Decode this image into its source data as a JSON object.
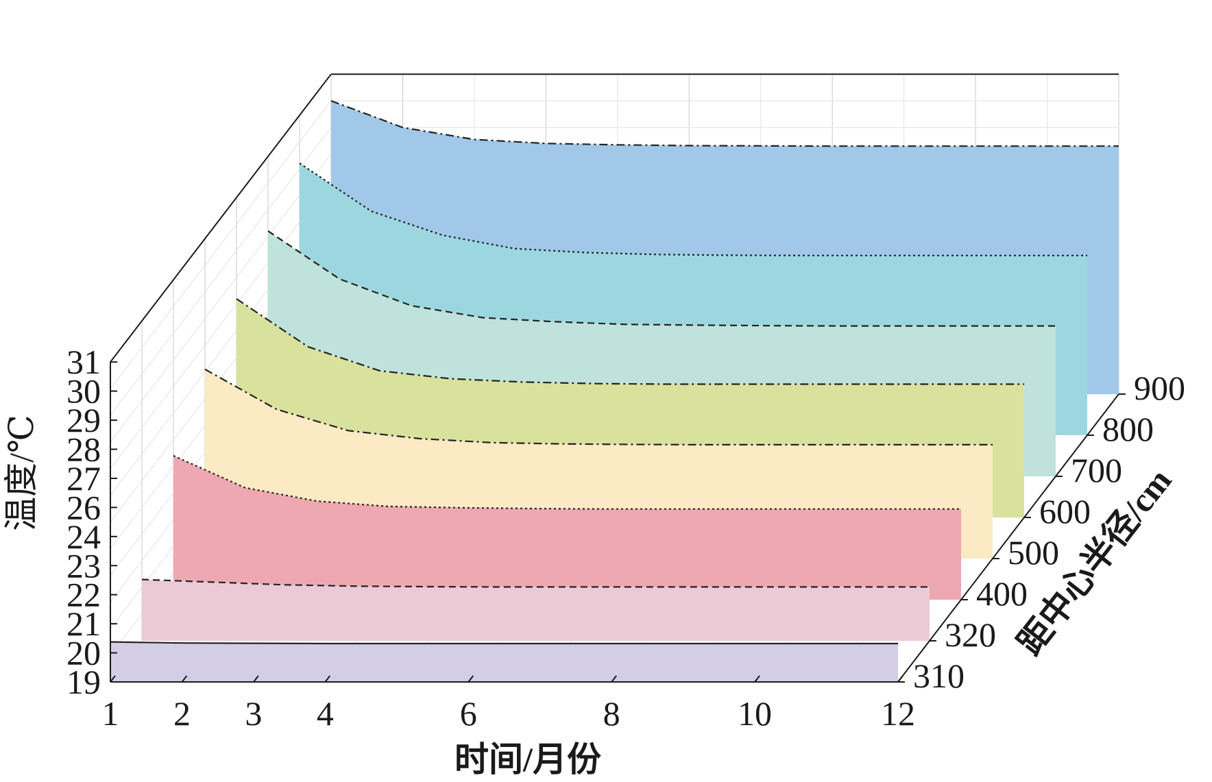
{
  "chart_data": {
    "type": "area",
    "view": "3d-waterfall",
    "xlabel": "时间/月份",
    "ylabel": "距中心半径/cm",
    "zlabel": "温度/℃",
    "x_ticks": [
      "1",
      "2",
      "3",
      "4",
      "6",
      "8",
      "10",
      "12"
    ],
    "y_ticks": [
      "310",
      "320",
      "400",
      "500",
      "600",
      "700",
      "800",
      "900"
    ],
    "z_ticks": [
      "19",
      "20",
      "21",
      "22",
      "23",
      "24",
      "26",
      "27",
      "28",
      "29",
      "30",
      "31"
    ],
    "x": [
      1,
      2,
      3,
      4,
      5,
      6,
      7,
      8,
      9,
      10,
      11,
      12
    ],
    "zlim": [
      19,
      31
    ],
    "grid": true,
    "series": [
      {
        "name": "310",
        "color": "#d3cde6",
        "line": "solid",
        "values": [
          20.5,
          20.46,
          20.45,
          20.44,
          20.44,
          20.44,
          20.44,
          20.44,
          20.44,
          20.44,
          20.44,
          20.44
        ]
      },
      {
        "name": "320",
        "color": "#eccad5",
        "line": "dashed",
        "values": [
          21.3,
          21.2,
          21.1,
          21.05,
          21.03,
          21.02,
          21.02,
          21.02,
          21.02,
          21.02,
          21.02,
          21.02
        ]
      },
      {
        "name": "400",
        "color": "#eea8b2",
        "line": "dotted",
        "values": [
          24.4,
          23.2,
          22.7,
          22.5,
          22.45,
          22.42,
          22.4,
          22.4,
          22.4,
          22.4,
          22.4,
          22.4
        ]
      },
      {
        "name": "500",
        "color": "#fbeac4",
        "line": "dash-dot",
        "values": [
          26.1,
          24.6,
          23.8,
          23.5,
          23.35,
          23.3,
          23.28,
          23.27,
          23.27,
          23.27,
          23.27,
          23.27
        ]
      },
      {
        "name": "600",
        "color": "#d9e29d",
        "line": "dash-dot",
        "values": [
          27.2,
          25.4,
          24.5,
          24.2,
          24.08,
          24.02,
          24.0,
          24.0,
          24.0,
          24.0,
          24.0,
          24.0
        ]
      },
      {
        "name": "700",
        "color": "#bfe2dc",
        "line": "dashed",
        "values": [
          28.2,
          26.4,
          25.4,
          24.95,
          24.8,
          24.7,
          24.67,
          24.65,
          24.64,
          24.64,
          24.64,
          24.64
        ]
      },
      {
        "name": "800",
        "color": "#9cd7e0",
        "line": "dotted",
        "values": [
          29.2,
          27.4,
          26.5,
          26.0,
          25.85,
          25.78,
          25.75,
          25.74,
          25.74,
          25.74,
          25.74,
          25.74
        ]
      },
      {
        "name": "900",
        "color": "#a1c8e8",
        "line": "dash-dot",
        "values": [
          30.0,
          29.0,
          28.55,
          28.4,
          28.35,
          28.32,
          28.31,
          28.3,
          28.3,
          28.3,
          28.3,
          28.3
        ]
      }
    ]
  }
}
